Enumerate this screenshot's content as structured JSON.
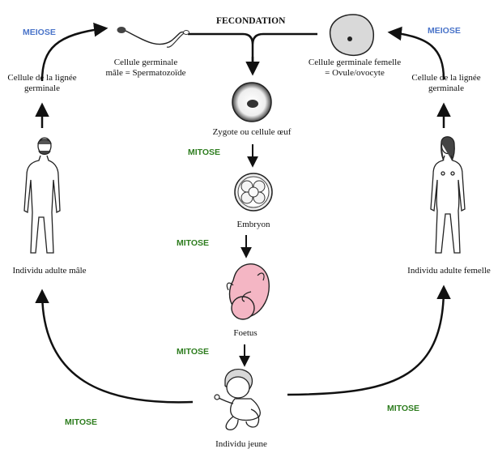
{
  "labels": {
    "meiose_left": "MEIOSE",
    "meiose_right": "MEIOSE",
    "fecondation": "FECONDATION",
    "sperm_line1": "Cellule germinale",
    "sperm_line2": "mâle = Spermatozoïde",
    "ovule_line1": "Cellule germinale femelle",
    "ovule_line2": "= Ovule/ovocyte",
    "germ_left_line1": "Cellule de la lignée",
    "germ_left_line2": "germinale",
    "germ_right_line1": "Cellule de la lignée",
    "germ_right_line2": "germinale",
    "zygote": "Zygote ou cellule œuf",
    "embryon": "Embryon",
    "foetus": "Foetus",
    "individu_jeune": "Individu jeune",
    "adult_male": "Individu adulte mâle",
    "adult_female": "Individu adulte femelle",
    "mitose_1": "MITOSE",
    "mitose_2": "MITOSE",
    "mitose_3": "MITOSE",
    "mitose_left": "MITOSE",
    "mitose_right": "MITOSE"
  },
  "colors": {
    "meiose": "#4a74c9",
    "mitose": "#2e7d1f",
    "foetus_fill": "#f4b6c4",
    "ovule_fill": "#d9d9d9"
  }
}
